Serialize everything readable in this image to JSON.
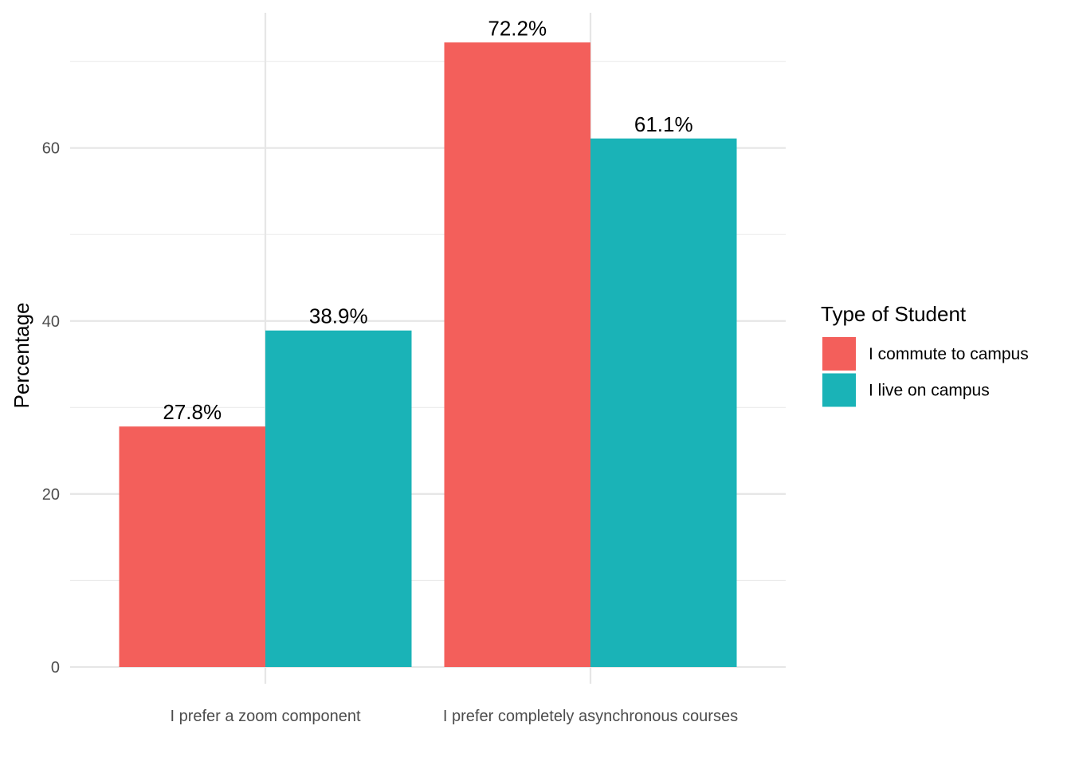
{
  "chart_data": {
    "type": "bar",
    "categories": [
      "I prefer a zoom component",
      "I prefer completely asynchronous courses"
    ],
    "series": [
      {
        "name": "I commute to campus",
        "values": [
          27.8,
          72.2
        ],
        "labels": [
          "27.8%",
          "72.2%"
        ],
        "color": "#F35F5B"
      },
      {
        "name": "I live on campus",
        "values": [
          38.9,
          61.1
        ],
        "labels": [
          "38.9%",
          "61.1%"
        ],
        "color": "#1AB3B7"
      }
    ],
    "title": "",
    "xlabel": "",
    "ylabel": "Percentage",
    "ylim": [
      0,
      75
    ],
    "yticks": [
      0,
      20,
      40,
      60
    ],
    "ytick_labels": [
      "0",
      "20",
      "40",
      "60"
    ],
    "grid": true,
    "legend": {
      "title": "Type of Student",
      "placement": "right"
    }
  }
}
